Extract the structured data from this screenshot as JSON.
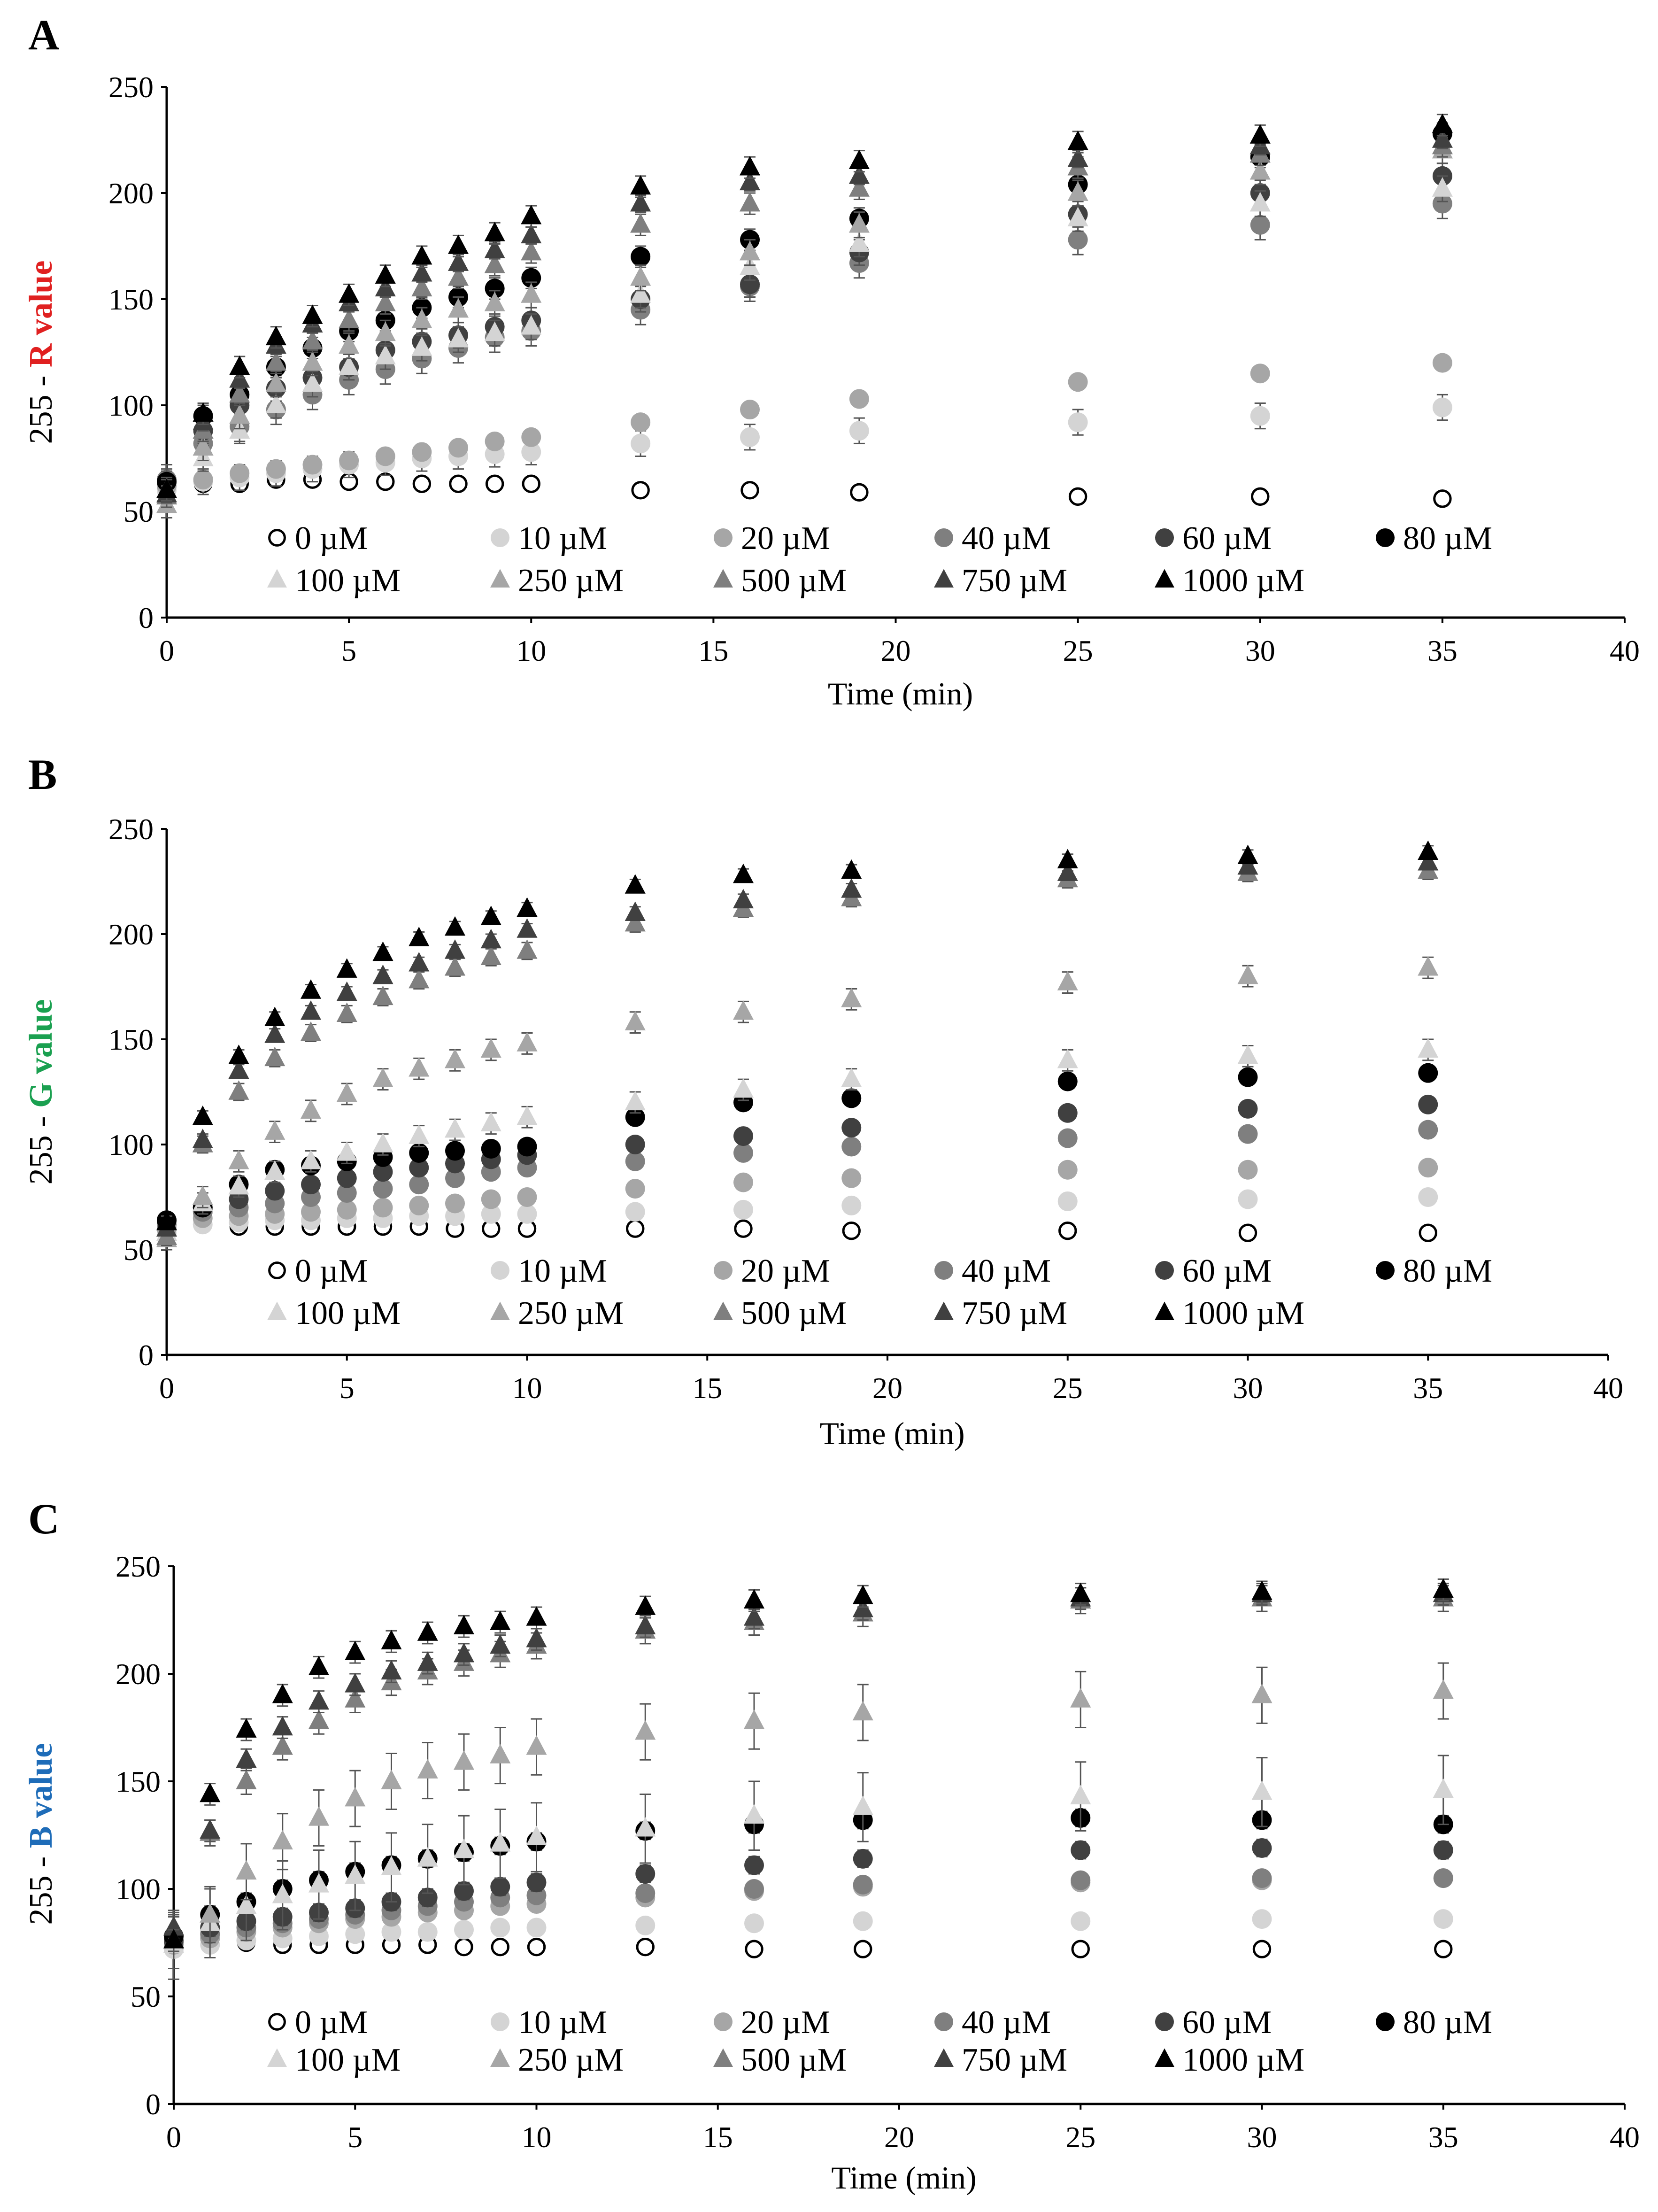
{
  "chart_data": [
    {
      "type": "scatter",
      "panel": "A",
      "ylabel_prefix": "255 - ",
      "ylabel_channel": "R value",
      "channel_color": "#e02020",
      "xlabel": "Time (min)",
      "xlim": [
        0,
        40
      ],
      "ylim": [
        0,
        250
      ],
      "xticks": [
        0,
        5,
        10,
        15,
        20,
        25,
        30,
        35,
        40
      ],
      "yticks": [
        0,
        50,
        100,
        150,
        200,
        250
      ],
      "x": [
        0,
        1,
        2,
        3,
        4,
        5,
        6,
        7,
        8,
        9,
        10,
        13,
        16,
        19,
        25,
        30,
        35
      ],
      "series": [
        {
          "name": "0 µM",
          "marker": "circle-open",
          "color": "#000000",
          "values": [
            63,
            63,
            63,
            65,
            65,
            64,
            64,
            63,
            63,
            63,
            63,
            60,
            60,
            59,
            57,
            57,
            56
          ],
          "err": 3
        },
        {
          "name": "10 µM",
          "marker": "circle",
          "color": "#d4d4d4",
          "values": [
            60,
            64,
            66,
            68,
            70,
            72,
            73,
            75,
            76,
            77,
            78,
            82,
            85,
            88,
            92,
            95,
            99
          ],
          "err": 6
        },
        {
          "name": "20 µM",
          "marker": "circle",
          "color": "#a6a6a6",
          "values": [
            62,
            65,
            68,
            70,
            72,
            74,
            76,
            78,
            80,
            83,
            85,
            92,
            98,
            103,
            111,
            115,
            120
          ],
          "err": 3
        },
        {
          "name": "40 µM",
          "marker": "circle",
          "color": "#7f7f7f",
          "values": [
            65,
            82,
            90,
            98,
            105,
            112,
            117,
            122,
            127,
            132,
            135,
            145,
            156,
            167,
            178,
            185,
            195
          ],
          "err": 7
        },
        {
          "name": "60 µM",
          "marker": "circle",
          "color": "#404040",
          "values": [
            64,
            88,
            100,
            108,
            113,
            118,
            126,
            130,
            133,
            137,
            140,
            150,
            157,
            172,
            190,
            200,
            208
          ],
          "err": 6
        },
        {
          "name": "80 µM",
          "marker": "circle",
          "color": "#000000",
          "values": [
            64,
            95,
            105,
            118,
            127,
            135,
            140,
            146,
            151,
            155,
            160,
            170,
            178,
            188,
            204,
            217,
            228
          ],
          "err": 5
        },
        {
          "name": "100 µM",
          "marker": "triangle",
          "color": "#d4d4d4",
          "values": [
            60,
            75,
            88,
            100,
            110,
            118,
            123,
            127,
            131,
            134,
            137,
            152,
            165,
            176,
            188,
            195,
            202
          ],
          "err": 6
        },
        {
          "name": "250 µM",
          "marker": "triangle",
          "color": "#a6a6a6",
          "values": [
            53,
            80,
            95,
            110,
            120,
            128,
            134,
            140,
            145,
            148,
            152,
            160,
            172,
            185,
            200,
            210,
            220
          ],
          "err": 6
        },
        {
          "name": "500 µM",
          "marker": "triangle",
          "color": "#7f7f7f",
          "values": [
            57,
            88,
            105,
            120,
            130,
            140,
            148,
            155,
            160,
            166,
            172,
            185,
            195,
            202,
            212,
            218,
            222
          ],
          "err": 5
        },
        {
          "name": "750 µM",
          "marker": "triangle",
          "color": "#404040",
          "values": [
            58,
            92,
            112,
            128,
            138,
            148,
            155,
            162,
            167,
            173,
            180,
            195,
            205,
            208,
            216,
            222,
            225
          ],
          "err": 4
        },
        {
          "name": "1000 µM",
          "marker": "triangle",
          "color": "#000000",
          "values": [
            60,
            96,
            118,
            132,
            142,
            152,
            161,
            170,
            175,
            181,
            189,
            203,
            212,
            215,
            224,
            227,
            232
          ],
          "err": 5
        }
      ]
    },
    {
      "type": "scatter",
      "panel": "B",
      "ylabel_prefix": "255 - ",
      "ylabel_channel": "G value",
      "channel_color": "#1aa050",
      "xlabel": "Time (min)",
      "xlim": [
        0,
        40
      ],
      "ylim": [
        0,
        250
      ],
      "xticks": [
        0,
        5,
        10,
        15,
        20,
        25,
        30,
        35,
        40
      ],
      "yticks": [
        0,
        50,
        100,
        150,
        200,
        250
      ],
      "x": [
        0,
        1,
        2,
        3,
        4,
        5,
        6,
        7,
        8,
        9,
        10,
        13,
        16,
        19,
        25,
        30,
        35
      ],
      "series": [
        {
          "name": "0 µM",
          "marker": "circle-open",
          "color": "#000000",
          "values": [
            63,
            62,
            61,
            61,
            61,
            61,
            61,
            61,
            60,
            60,
            60,
            60,
            60,
            59,
            59,
            58,
            58
          ],
          "err": 2
        },
        {
          "name": "10 µM",
          "marker": "circle",
          "color": "#d4d4d4",
          "values": [
            58,
            62,
            63,
            64,
            64,
            65,
            65,
            66,
            66,
            67,
            67,
            68,
            69,
            71,
            73,
            74,
            75
          ],
          "err": 2
        },
        {
          "name": "20 µM",
          "marker": "circle",
          "color": "#a6a6a6",
          "values": [
            60,
            65,
            66,
            67,
            68,
            69,
            70,
            71,
            72,
            74,
            75,
            79,
            82,
            84,
            88,
            88,
            89
          ],
          "err": 2
        },
        {
          "name": "40 µM",
          "marker": "circle",
          "color": "#7f7f7f",
          "values": [
            62,
            68,
            70,
            72,
            75,
            77,
            79,
            81,
            84,
            87,
            89,
            92,
            96,
            99,
            103,
            105,
            107
          ],
          "err": 2
        },
        {
          "name": "60 µM",
          "marker": "circle",
          "color": "#404040",
          "values": [
            64,
            70,
            74,
            78,
            81,
            84,
            87,
            89,
            91,
            93,
            95,
            100,
            104,
            108,
            115,
            117,
            119
          ],
          "err": 2
        },
        {
          "name": "80 µM",
          "marker": "circle",
          "color": "#000000",
          "values": [
            64,
            70,
            81,
            88,
            90,
            92,
            94,
            96,
            97,
            98,
            99,
            113,
            120,
            122,
            130,
            132,
            134
          ],
          "err": 2
        },
        {
          "name": "100 µM",
          "marker": "triangle",
          "color": "#d4d4d4",
          "values": [
            58,
            72,
            80,
            87,
            92,
            96,
            100,
            104,
            107,
            110,
            113,
            120,
            126,
            131,
            140,
            142,
            145
          ],
          "err": 5
        },
        {
          "name": "250 µM",
          "marker": "triangle",
          "color": "#a6a6a6",
          "values": [
            55,
            75,
            92,
            106,
            116,
            124,
            131,
            136,
            140,
            145,
            148,
            158,
            163,
            169,
            177,
            180,
            184
          ],
          "err": 5
        },
        {
          "name": "500 µM",
          "marker": "triangle",
          "color": "#7f7f7f",
          "values": [
            56,
            100,
            125,
            141,
            153,
            162,
            170,
            178,
            184,
            189,
            192,
            205,
            212,
            217,
            226,
            229,
            230
          ],
          "err": 4
        },
        {
          "name": "750 µM",
          "marker": "triangle",
          "color": "#404040",
          "values": [
            60,
            102,
            135,
            152,
            163,
            172,
            180,
            186,
            192,
            197,
            202,
            210,
            216,
            221,
            229,
            232,
            234
          ],
          "err": 3
        },
        {
          "name": "1000 µM",
          "marker": "triangle",
          "color": "#000000",
          "values": [
            63,
            113,
            142,
            160,
            173,
            183,
            191,
            198,
            203,
            208,
            212,
            223,
            228,
            230,
            235,
            237,
            239
          ],
          "err": 3
        }
      ]
    },
    {
      "type": "scatter",
      "panel": "C",
      "ylabel_prefix": "255 - ",
      "ylabel_channel": "B value",
      "channel_color": "#1e6cb8",
      "xlabel": "Time (min)",
      "xlim": [
        0,
        40
      ],
      "ylim": [
        0,
        250
      ],
      "xticks": [
        0,
        5,
        10,
        15,
        20,
        25,
        30,
        35,
        40
      ],
      "yticks": [
        0,
        50,
        100,
        150,
        200,
        250
      ],
      "x": [
        0,
        1,
        2,
        3,
        4,
        5,
        6,
        7,
        8,
        9,
        10,
        13,
        16,
        19,
        25,
        30,
        35
      ],
      "series": [
        {
          "name": "0 µM",
          "marker": "circle-open",
          "color": "#000000",
          "values": [
            72,
            74,
            75,
            74,
            74,
            74,
            74,
            74,
            73,
            73,
            73,
            73,
            72,
            72,
            72,
            72,
            72
          ],
          "err": 3
        },
        {
          "name": "10 µM",
          "marker": "circle",
          "color": "#d4d4d4",
          "values": [
            72,
            74,
            76,
            77,
            78,
            79,
            80,
            80,
            81,
            82,
            82,
            83,
            84,
            85,
            85,
            86,
            86
          ],
          "err": 2
        },
        {
          "name": "20 µM",
          "marker": "circle",
          "color": "#a6a6a6",
          "values": [
            74,
            77,
            80,
            82,
            84,
            86,
            87,
            89,
            90,
            92,
            93,
            96,
            99,
            101,
            103,
            104,
            105
          ],
          "err": 3
        },
        {
          "name": "40 µM",
          "marker": "circle",
          "color": "#7f7f7f",
          "values": [
            75,
            79,
            82,
            84,
            86,
            88,
            90,
            92,
            94,
            96,
            97,
            98,
            100,
            102,
            104,
            105,
            105
          ],
          "err": 3
        },
        {
          "name": "60 µM",
          "marker": "circle",
          "color": "#404040",
          "values": [
            76,
            82,
            85,
            87,
            89,
            91,
            94,
            96,
            99,
            101,
            103,
            107,
            111,
            114,
            118,
            119,
            118
          ],
          "err": 4
        },
        {
          "name": "80 µM",
          "marker": "circle",
          "color": "#000000",
          "values": [
            78,
            88,
            94,
            100,
            104,
            108,
            111,
            114,
            117,
            120,
            122,
            127,
            130,
            132,
            133,
            132,
            130
          ],
          "err": 4
        },
        {
          "name": "100 µM",
          "marker": "triangle",
          "color": "#d4d4d4",
          "values": [
            74,
            84,
            92,
            97,
            102,
            106,
            110,
            114,
            118,
            121,
            124,
            128,
            134,
            138,
            143,
            145,
            146
          ],
          "err": 16
        },
        {
          "name": "250 µM",
          "marker": "triangle",
          "color": "#a6a6a6",
          "values": [
            76,
            88,
            108,
            122,
            133,
            142,
            150,
            155,
            159,
            162,
            166,
            173,
            178,
            182,
            188,
            190,
            192
          ],
          "err": 13
        },
        {
          "name": "500 µM",
          "marker": "triangle",
          "color": "#7f7f7f",
          "values": [
            82,
            126,
            150,
            166,
            178,
            188,
            196,
            201,
            205,
            209,
            213,
            220,
            224,
            228,
            234,
            235,
            235
          ],
          "err": 6
        },
        {
          "name": "750 µM",
          "marker": "triangle",
          "color": "#404040",
          "values": [
            82,
            127,
            160,
            175,
            187,
            195,
            201,
            205,
            209,
            213,
            216,
            222,
            226,
            230,
            235,
            237,
            237
          ],
          "err": 5
        },
        {
          "name": "1000 µM",
          "marker": "triangle",
          "color": "#000000",
          "values": [
            76,
            144,
            174,
            190,
            203,
            210,
            215,
            219,
            222,
            224,
            226,
            231,
            234,
            236,
            237,
            238,
            239
          ],
          "err": 5
        }
      ]
    }
  ]
}
